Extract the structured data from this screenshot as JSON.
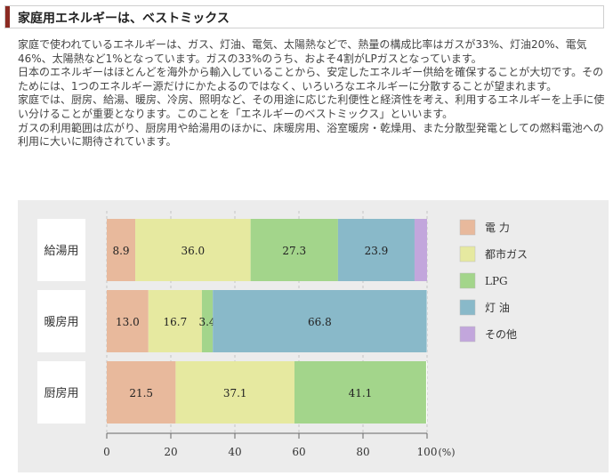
{
  "heading": {
    "title": "家庭用エネルギーは、ベストミックス"
  },
  "paragraphs": [
    "家庭で使われているエネルギーは、ガス、灯油、電気、太陽熱などで、熱量の構成比率はガスが33%、灯油20%、電気46%、太陽熱など1%となっています。ガスの33%のうち、およそ4割がLPガスとなっています。",
    "日本のエネルギーはほとんどを海外から輸入していることから、安定したエネルギー供給を確保することが大切です。そのためには、1つのエネルギー源だけにかたよるのではなく、いろいろなエネルギーに分散することが望まれます。",
    "家庭では、厨房、給湯、暖房、冷房、照明など、その用途に応じた利便性と経済性を考え、利用するエネルギーを上手に使い分けることが重要となります。このことを「エネルギーのベストミックス」といいます。",
    "ガスの利用範囲は広がり、厨房用や給湯用のほかに、床暖房用、浴室暖房・乾燥用、また分散型発電としての燃料電池への利用に大いに期待されています。"
  ],
  "chart_data": {
    "type": "bar",
    "orientation": "horizontal",
    "stacked": true,
    "categories": [
      "給湯用",
      "暖房用",
      "厨房用"
    ],
    "series": [
      {
        "name": "電 力",
        "color": "#e8b99c",
        "values": [
          8.9,
          13.0,
          21.5
        ],
        "labels": [
          "8.9",
          "13.0",
          "21.5"
        ]
      },
      {
        "name": "都市ガス",
        "color": "#e6e9a0",
        "values": [
          36.0,
          16.7,
          37.1
        ],
        "labels": [
          "36.0",
          "16.7",
          "37.1"
        ]
      },
      {
        "name": "LPG",
        "color": "#a3d58b",
        "values": [
          27.3,
          3.4,
          41.1
        ],
        "labels": [
          "27.3",
          "3.4",
          "41.1"
        ]
      },
      {
        "name": "灯 油",
        "color": "#89b9c9",
        "values": [
          23.9,
          66.8,
          0
        ],
        "labels": [
          "23.9",
          "66.8",
          ""
        ]
      },
      {
        "name": "その他",
        "color": "#c2a6dc",
        "values": [
          3.9,
          0,
          0
        ],
        "labels": [
          "",
          "",
          ""
        ]
      }
    ],
    "xlim": [
      0,
      100
    ],
    "xticks": [
      "0",
      "20",
      "40",
      "60",
      "80",
      "100"
    ],
    "xunit": "(%)",
    "legend": "right"
  }
}
